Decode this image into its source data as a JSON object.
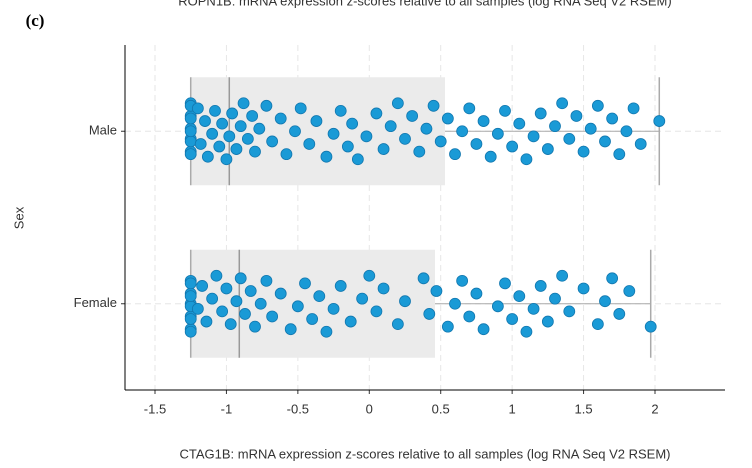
{
  "panel_label": "(c)",
  "chart_data": {
    "type": "boxplot",
    "title": "ROPN1B: mRNA expression z-scores relative to all samples (log RNA Seq V2 RSEM)",
    "x_label": "CTAG1B: mRNA expression z-scores relative to all samples (log RNA Seq V2 RSEM)",
    "y_label": "Sex",
    "categories": [
      "Male",
      "Female"
    ],
    "boxes": [
      {
        "min": -1.25,
        "q1": -1.25,
        "median": -0.98,
        "q3": 0.53,
        "max": 2.03
      },
      {
        "min": -1.25,
        "q1": -1.25,
        "median": -0.91,
        "q3": 0.46,
        "max": 1.97
      }
    ],
    "points": [
      [
        -1.25,
        -1.25,
        -1.25,
        -1.25,
        -1.25,
        -1.25,
        -1.25,
        -1.25,
        -1.25,
        -1.25,
        -1.2,
        -1.18,
        -1.15,
        -1.13,
        -1.1,
        -1.08,
        -1.05,
        -1.03,
        -1.0,
        -0.98,
        -0.96,
        -0.93,
        -0.9,
        -0.88,
        -0.85,
        -0.82,
        -0.8,
        -0.77,
        -0.72,
        -0.68,
        -0.62,
        -0.58,
        -0.52,
        -0.48,
        -0.42,
        -0.37,
        -0.3,
        -0.25,
        -0.2,
        -0.15,
        -0.12,
        -0.08,
        -0.02,
        0.05,
        0.1,
        0.15,
        0.2,
        0.25,
        0.3,
        0.35,
        0.4,
        0.45,
        0.5,
        0.55,
        0.6,
        0.65,
        0.7,
        0.75,
        0.8,
        0.85,
        0.9,
        0.95,
        1.0,
        1.05,
        1.1,
        1.15,
        1.2,
        1.25,
        1.3,
        1.35,
        1.4,
        1.45,
        1.5,
        1.55,
        1.6,
        1.65,
        1.7,
        1.75,
        1.8,
        1.85,
        1.9,
        2.03
      ],
      [
        -1.25,
        -1.25,
        -1.25,
        -1.25,
        -1.25,
        -1.25,
        -1.25,
        -1.25,
        -1.25,
        -1.25,
        -1.2,
        -1.17,
        -1.14,
        -1.1,
        -1.07,
        -1.03,
        -1.0,
        -0.97,
        -0.93,
        -0.9,
        -0.87,
        -0.83,
        -0.8,
        -0.76,
        -0.72,
        -0.68,
        -0.62,
        -0.55,
        -0.5,
        -0.45,
        -0.4,
        -0.35,
        -0.3,
        -0.25,
        -0.2,
        -0.13,
        -0.05,
        0.0,
        0.05,
        0.1,
        0.2,
        0.25,
        0.38,
        0.42,
        0.47,
        0.55,
        0.6,
        0.65,
        0.7,
        0.75,
        0.8,
        0.9,
        0.95,
        1.0,
        1.05,
        1.1,
        1.15,
        1.2,
        1.25,
        1.3,
        1.35,
        1.4,
        1.5,
        1.6,
        1.65,
        1.7,
        1.75,
        1.82,
        1.97
      ]
    ],
    "color": "#1a9ad6",
    "box_color": "#ebebeb",
    "xlim": [
      -1.71,
      2.49
    ],
    "xticks": [
      -1.5,
      -1,
      -0.5,
      0,
      0.5,
      1,
      1.5,
      2
    ],
    "grid": true
  }
}
